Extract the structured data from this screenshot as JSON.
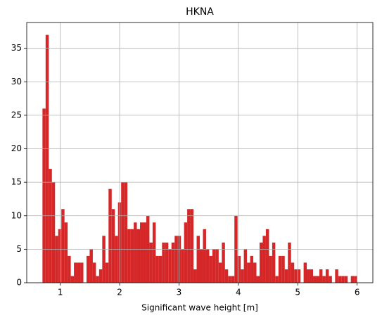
{
  "chart_data": {
    "type": "histogram",
    "title": "HKNA",
    "xlabel": "Significant wave height [m]",
    "bins": [
      0.7,
      0.753,
      0.806,
      0.859,
      0.912,
      0.965,
      1.018,
      1.071,
      1.124,
      1.177,
      1.23,
      1.283,
      1.336,
      1.389,
      1.442,
      1.495,
      1.548,
      1.601,
      1.654,
      1.707,
      1.76,
      1.813,
      1.866,
      1.919,
      1.972,
      2.025,
      2.078,
      2.131,
      2.184,
      2.237,
      2.29,
      2.343,
      2.396,
      2.449,
      2.502,
      2.555,
      2.608,
      2.661,
      2.714,
      2.767,
      2.82,
      2.873,
      2.926,
      2.979,
      3.032,
      3.085,
      3.138,
      3.191,
      3.244,
      3.297,
      3.35,
      3.403,
      3.456,
      3.509,
      3.562,
      3.615,
      3.668,
      3.721,
      3.774,
      3.827,
      3.88,
      3.933,
      3.986,
      4.039,
      4.092,
      4.145,
      4.198,
      4.251,
      4.304,
      4.357,
      4.41,
      4.463,
      4.516,
      4.569,
      4.622,
      4.675,
      4.728,
      4.781,
      4.834,
      4.887,
      4.94,
      4.993,
      5.046,
      5.099,
      5.152,
      5.205,
      5.258,
      5.311,
      5.364,
      5.417,
      5.47,
      5.523,
      5.576,
      5.629,
      5.682,
      5.735,
      5.788,
      5.841,
      5.894,
      5.947,
      6.0
    ],
    "counts": [
      26,
      37,
      17,
      15,
      7,
      8,
      11,
      9,
      4,
      1,
      3,
      3,
      3,
      0,
      4,
      5,
      3,
      1,
      2,
      7,
      3,
      14,
      11,
      7,
      12,
      15,
      15,
      8,
      8,
      9,
      8,
      9,
      9,
      10,
      6,
      9,
      4,
      4,
      6,
      6,
      5,
      6,
      7,
      7,
      5,
      9,
      11,
      11,
      2,
      7,
      5,
      8,
      5,
      4,
      5,
      5,
      3,
      6,
      2,
      1,
      1,
      10,
      4,
      2,
      5,
      3,
      4,
      3,
      1,
      6,
      7,
      8,
      4,
      6,
      1,
      4,
      4,
      2,
      6,
      3,
      2,
      2,
      0,
      3,
      2,
      2,
      1,
      1,
      2,
      1,
      2,
      1,
      0,
      2,
      1,
      1,
      1,
      0,
      1,
      1
    ],
    "color": "#d62728",
    "xlim": [
      0.435,
      6.265
    ],
    "ylim": [
      0,
      38.85
    ],
    "xticks": [
      1,
      2,
      3,
      4,
      5,
      6
    ],
    "yticks": [
      0,
      5,
      10,
      15,
      20,
      25,
      30,
      35
    ],
    "grid": true
  }
}
